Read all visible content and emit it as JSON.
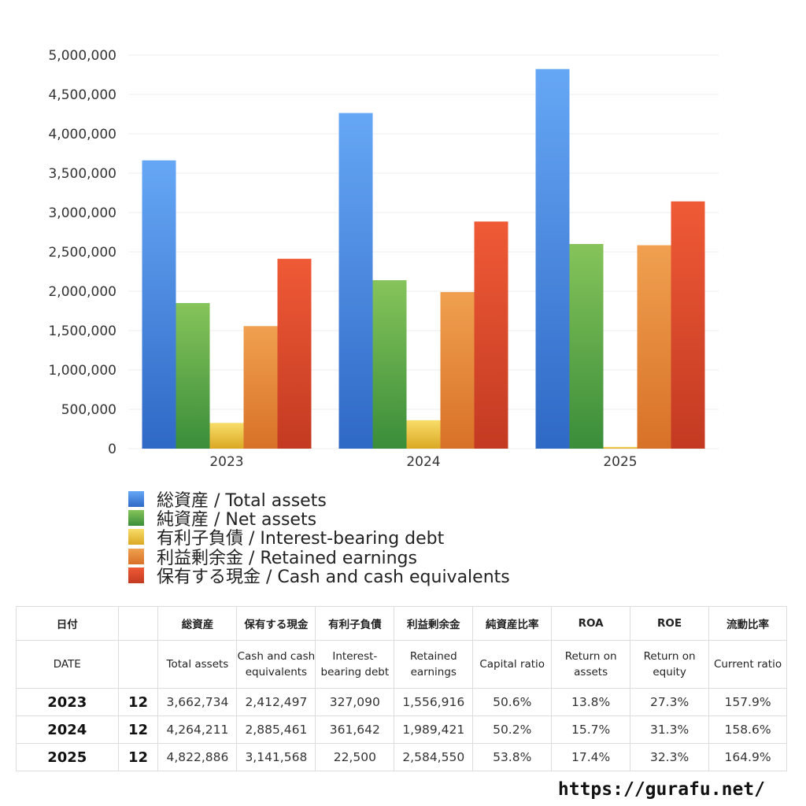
{
  "chart_data": {
    "type": "bar",
    "categories": [
      "2023",
      "2024",
      "2025"
    ],
    "ylim": [
      0,
      5000000
    ],
    "yticks": [
      0,
      500000,
      1000000,
      1500000,
      2000000,
      2500000,
      3000000,
      3500000,
      4000000,
      4500000,
      5000000
    ],
    "ytick_labels": [
      "0",
      "500,000",
      "1,000,000",
      "1,500,000",
      "2,000,000",
      "2,500,000",
      "3,000,000",
      "3,500,000",
      "4,000,000",
      "4,500,000",
      "5,000,000"
    ],
    "grid": true,
    "legend_position": "bottom",
    "series": [
      {
        "name": "総資産 / Total assets",
        "values": [
          3662734,
          4264211,
          4822886
        ],
        "color_top": "#66a7f5",
        "color_bottom": "#2f69c6"
      },
      {
        "name": "純資産 / Net assets",
        "values": [
          1850000,
          2140000,
          2600000
        ],
        "color_top": "#86c45a",
        "color_bottom": "#3a8d3a"
      },
      {
        "name": "有利子負債 / Interest-bearing debt",
        "values": [
          327090,
          361642,
          22500
        ],
        "color_top": "#f8dd6a",
        "color_bottom": "#dba823"
      },
      {
        "name": "利益剰余金 / Retained earnings",
        "values": [
          1556916,
          1989421,
          2584550
        ],
        "color_top": "#f0a050",
        "color_bottom": "#d87128"
      },
      {
        "name": "保有する現金 /  Cash and cash equivalents",
        "values": [
          2412497,
          2885461,
          3141568
        ],
        "color_top": "#ef5a36",
        "color_bottom": "#c33a22"
      }
    ]
  },
  "table": {
    "header_jp": [
      "日付",
      "",
      "総資産",
      "保有する現金",
      "有利子負債",
      "利益剰余金",
      "純資産比率",
      "ROA",
      "ROE",
      "流動比率"
    ],
    "header_en": [
      "DATE",
      "",
      "Total assets",
      "Cash and cash equivalents",
      "Interest-bearing debt",
      "Retained earnings",
      "Capital ratio",
      "Return on assets",
      "Return on equity",
      "Current ratio"
    ],
    "rows": [
      [
        "2023",
        "12",
        "3,662,734",
        "2,412,497",
        "327,090",
        "1,556,916",
        "50.6%",
        "13.8%",
        "27.3%",
        "157.9%"
      ],
      [
        "2024",
        "12",
        "4,264,211",
        "2,885,461",
        "361,642",
        "1,989,421",
        "50.2%",
        "15.7%",
        "31.3%",
        "158.6%"
      ],
      [
        "2025",
        "12",
        "4,822,886",
        "3,141,568",
        "22,500",
        "2,584,550",
        "53.8%",
        "17.4%",
        "32.3%",
        "164.9%"
      ]
    ]
  },
  "footer": {
    "url": "https://gurafu.net/"
  }
}
